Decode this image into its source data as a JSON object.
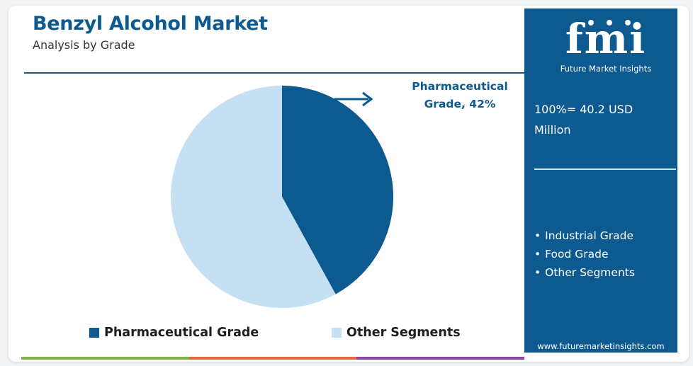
{
  "header": {
    "title": "Benzyl Alcohol Market",
    "subtitle": "Analysis by Grade"
  },
  "chart_data": {
    "type": "pie",
    "title": "Benzyl Alcohol Market",
    "subtitle": "Analysis by Grade",
    "slices": [
      {
        "label": "Pharmaceutical Grade",
        "value": 42,
        "color": "#0d5a90"
      },
      {
        "label": "Other Segments",
        "value": 58,
        "color": "#c5e0f3"
      }
    ],
    "callout": "Pharmaceutical Grade, 42%",
    "legend_position": "bottom"
  },
  "callout": {
    "line1": "Pharmaceutical",
    "line2": "Grade, 42%"
  },
  "legend": {
    "items": [
      {
        "label": "Pharmaceutical Grade",
        "color": "#0d5a90"
      },
      {
        "label": "Other Segments",
        "color": "#c5e0f3"
      }
    ]
  },
  "sidebar": {
    "logo_text": "fmi",
    "logo_tagline": "Future Market Insights",
    "total_line1": "100%= 40.2 USD",
    "total_line2": "Million",
    "segments": [
      "Industrial Grade",
      "Food Grade",
      "Other Segments"
    ],
    "website": "www.futuremarketinsights.com"
  },
  "colors": {
    "brand_blue": "#0d5a90",
    "light_blue": "#c5e0f3",
    "strip": [
      "#7cb342",
      "#e8663d",
      "#8e44ad"
    ]
  },
  "icons": {
    "arrow": "arrow-right-icon"
  }
}
